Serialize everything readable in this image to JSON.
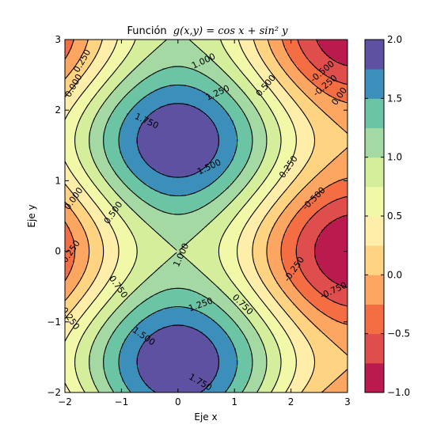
{
  "chart_data": {
    "type": "contour",
    "title_prefix": "Función",
    "title_formula": "g(x,y) = cos x + sin² y",
    "xlabel": "Eje x",
    "ylabel": "Eje y",
    "xlim": [
      -2,
      3
    ],
    "ylim": [
      -2,
      3
    ],
    "x_ticks": [
      -2,
      -1,
      0,
      1,
      2,
      3
    ],
    "x_tick_labels": [
      "−2",
      "−1",
      "0",
      "1",
      "2",
      "3"
    ],
    "y_ticks": [
      -2,
      -1,
      0,
      1,
      2,
      3
    ],
    "y_tick_labels": [
      "−2",
      "−1",
      "0",
      "1",
      "2",
      "3"
    ],
    "function": "cos(x) + sin(y)^2",
    "filled_levels": [
      -1.0,
      -0.75,
      -0.5,
      -0.25,
      0.0,
      0.25,
      0.5,
      0.75,
      1.0,
      1.25,
      1.5,
      1.75,
      2.0
    ],
    "filled_colors": [
      "#ba1a4d",
      "#df4d4c",
      "#f46d43",
      "#fca662",
      "#fed483",
      "#feeeaa",
      "#f1f9a8",
      "#d5ee9b",
      "#a5d9a4",
      "#6bc4a4",
      "#3b8fba",
      "#5e51a1"
    ],
    "line_levels": [
      -0.75,
      -0.5,
      -0.25,
      0.0,
      0.25,
      0.5,
      0.75,
      1.0,
      1.25,
      1.5,
      1.75
    ],
    "negative_linestyle": "dashed",
    "contour_labels": [
      {
        "text": "0.250",
        "x": -1.7,
        "y": 2.7,
        "rot": -60
      },
      {
        "text": "0.000",
        "x": -1.85,
        "y": 2.35,
        "rot": -60
      },
      {
        "text": "1.000",
        "x": 0.45,
        "y": 2.7,
        "rot": -25
      },
      {
        "text": "1.250",
        "x": 0.7,
        "y": 2.25,
        "rot": -25
      },
      {
        "text": "0.500",
        "x": 1.55,
        "y": 2.35,
        "rot": -50
      },
      {
        "text": "1.750",
        "x": -0.55,
        "y": 1.85,
        "rot": 25
      },
      {
        "text": "1.500",
        "x": 0.55,
        "y": 1.2,
        "rot": -25
      },
      {
        "text": "0.250",
        "x": 1.95,
        "y": 1.2,
        "rot": -55
      },
      {
        "text": "0.000",
        "x": -1.85,
        "y": 0.75,
        "rot": -55
      },
      {
        "text": "0.500",
        "x": -1.15,
        "y": 0.55,
        "rot": -55
      },
      {
        "text": "1.000",
        "x": 0.05,
        "y": -0.05,
        "rot": -65
      },
      {
        "text": "-0.500",
        "x": 2.4,
        "y": 0.75,
        "rot": -45
      },
      {
        "text": "-0.250",
        "x": 2.05,
        "y": -0.25,
        "rot": -55
      },
      {
        "text": "-0.750",
        "x": 2.75,
        "y": -0.55,
        "rot": -25
      },
      {
        "text": "0.750",
        "x": -1.05,
        "y": -0.5,
        "rot": 55
      },
      {
        "text": "1.250",
        "x": 0.4,
        "y": -0.75,
        "rot": -20
      },
      {
        "text": "0.750",
        "x": 1.15,
        "y": -0.75,
        "rot": 45
      },
      {
        "text": "1.500",
        "x": -0.6,
        "y": -1.2,
        "rot": 35
      },
      {
        "text": "0.250",
        "x": -1.9,
        "y": -0.95,
        "rot": 55
      },
      {
        "text": "0.250",
        "x": -1.9,
        "y": 0.0,
        "rot": -55
      },
      {
        "text": "0.00",
        "x": 2.85,
        "y": 2.2,
        "rot": -55
      },
      {
        "text": "-0.500",
        "x": 2.55,
        "y": 2.55,
        "rot": -40
      },
      {
        "text": "-0.250",
        "x": 2.6,
        "y": 2.35,
        "rot": -40
      },
      {
        "text": "1.750",
        "x": 0.4,
        "y": -1.85,
        "rot": 30
      }
    ],
    "colorbar": {
      "min": -1.0,
      "max": 2.0,
      "ticks": [
        -1.0,
        -0.5,
        0.0,
        0.5,
        1.0,
        1.5,
        2.0
      ],
      "tick_labels": [
        "−1.0",
        "−0.5",
        "0.0",
        "0.5",
        "1.0",
        "1.5",
        "2.0"
      ]
    }
  }
}
